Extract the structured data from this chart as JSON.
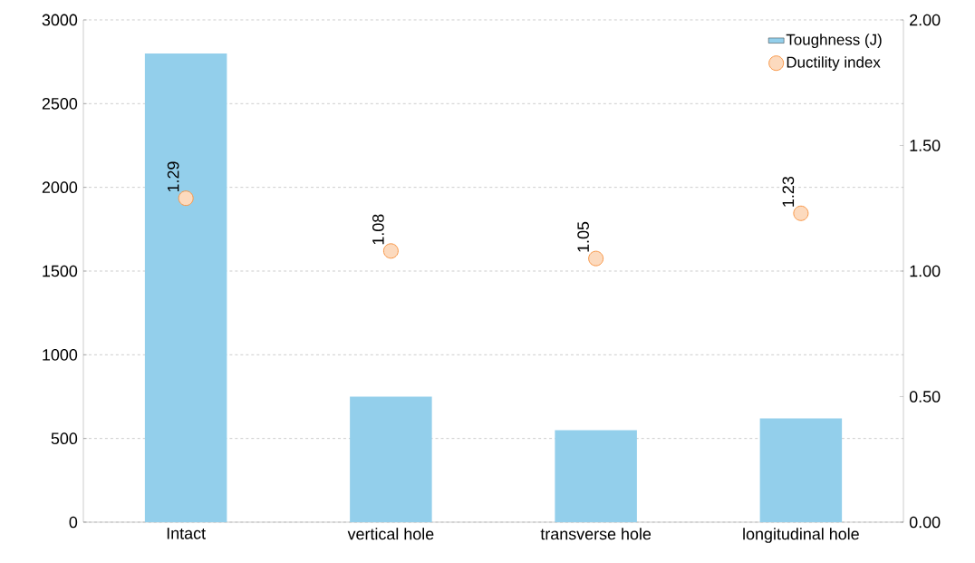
{
  "chart_data": {
    "type": "bar",
    "categories": [
      "Intact",
      "vertical hole",
      "transverse hole",
      "longitudinal hole"
    ],
    "series": [
      {
        "name": "Toughness (J)",
        "color": "#93cfeb",
        "values": [
          2800,
          750,
          550,
          620
        ]
      },
      {
        "name": "Ductility index",
        "type": "scatter",
        "axis": "y2",
        "color": "#f79646",
        "values": [
          1.29,
          1.08,
          1.05,
          1.23
        ],
        "value_labels": [
          "1.29",
          "1.08",
          "1.05",
          "1.23"
        ]
      }
    ],
    "ylim": [
      0,
      3000
    ],
    "yticks": [
      0,
      500,
      1000,
      1500,
      2000,
      2500,
      3000
    ],
    "y2lim": [
      0,
      2
    ],
    "y2ticks": [
      {
        "value": 0,
        "label": "0.00"
      },
      {
        "value": 0.5,
        "label": "0.50"
      },
      {
        "value": 1,
        "label": "1.00"
      },
      {
        "value": 1.5,
        "label": "1.50"
      },
      {
        "value": 2,
        "label": "2.00"
      }
    ],
    "grid": "y",
    "legend": "top right",
    "marker": "circle"
  }
}
